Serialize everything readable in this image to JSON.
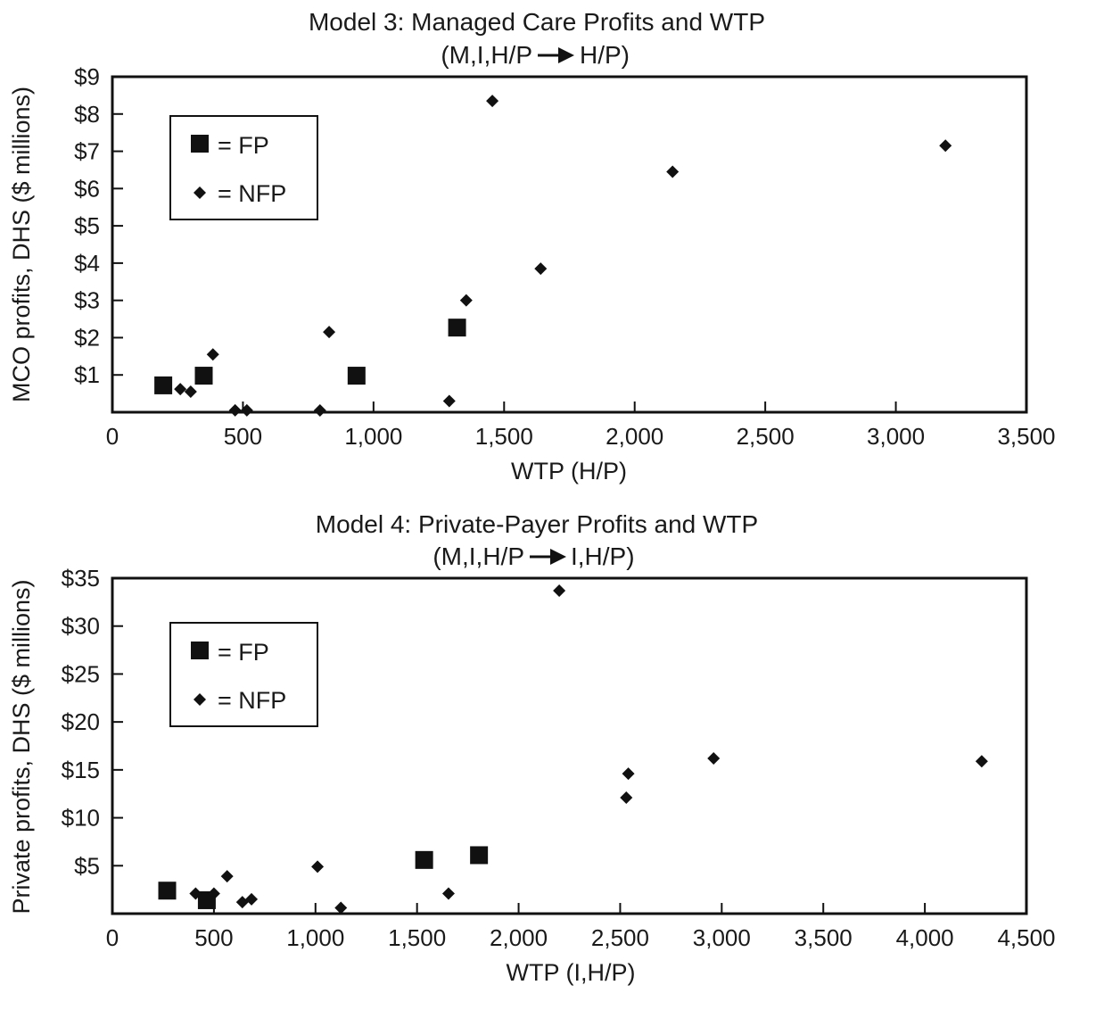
{
  "chart_data": [
    {
      "type": "scatter",
      "title": "Model 3: Managed Care Profits and WTP",
      "subtitle_left": "(M,I,H/P",
      "subtitle_right": "H/P)",
      "xlabel": "WTP (H/P)",
      "ylabel": "MCO profits, DHS ($ millions)",
      "xlim": [
        0,
        3500
      ],
      "ylim": [
        0,
        9
      ],
      "x_ticks": [
        0,
        500,
        1000,
        1500,
        2000,
        2500,
        3000,
        3500
      ],
      "x_tick_labels": [
        "0",
        "500",
        "1,000",
        "1,500",
        "2,000",
        "2,500",
        "3,000",
        "3,500"
      ],
      "y_ticks": [
        1,
        2,
        3,
        4,
        5,
        6,
        7,
        8,
        9
      ],
      "y_tick_labels": [
        "$1",
        "$2",
        "$3",
        "$4",
        "$5",
        "$6",
        "$7",
        "$8",
        "$9"
      ],
      "grid": false,
      "legend_position": "top-left",
      "series": [
        {
          "name": "= FP",
          "marker": "square",
          "points": [
            [
              195,
              0.72
            ],
            [
              350,
              0.98
            ],
            [
              935,
              0.98
            ],
            [
              1320,
              2.27
            ]
          ]
        },
        {
          "name": "= NFP",
          "marker": "diamond",
          "points": [
            [
              260,
              0.62
            ],
            [
              300,
              0.55
            ],
            [
              385,
              1.55
            ],
            [
              470,
              0.05
            ],
            [
              515,
              0.05
            ],
            [
              795,
              0.0
            ],
            [
              830,
              2.15
            ],
            [
              1290,
              0.3
            ],
            [
              1355,
              3.0
            ],
            [
              1455,
              8.35
            ],
            [
              1640,
              3.85
            ],
            [
              2145,
              6.45
            ],
            [
              3190,
              7.15
            ]
          ]
        }
      ]
    },
    {
      "type": "scatter",
      "title": "Model 4: Private-Payer Profits and WTP",
      "subtitle_left": "(M,I,H/P",
      "subtitle_right": "I,H/P)",
      "xlabel": "WTP (I,H/P)",
      "ylabel": "Private profits, DHS ($ millions)",
      "xlim": [
        0,
        4500
      ],
      "ylim": [
        0,
        35
      ],
      "x_ticks": [
        0,
        500,
        1000,
        1500,
        2000,
        2500,
        3000,
        3500,
        4000,
        4500
      ],
      "x_tick_labels": [
        "0",
        "500",
        "1,000",
        "1,500",
        "2,000",
        "2,500",
        "3,000",
        "3,500",
        "4,000",
        "4,500"
      ],
      "y_ticks": [
        5,
        10,
        15,
        20,
        25,
        30,
        35
      ],
      "y_tick_labels": [
        "$5",
        "$10",
        "$15",
        "$20",
        "$25",
        "$30",
        "$35"
      ],
      "grid": false,
      "legend_position": "top-left",
      "series": [
        {
          "name": "= FP",
          "marker": "square",
          "points": [
            [
              270,
              2.4
            ],
            [
              465,
              1.4
            ],
            [
              1535,
              5.6
            ],
            [
              1805,
              6.1
            ]
          ]
        },
        {
          "name": "= NFP",
          "marker": "diamond",
          "points": [
            [
              410,
              2.1
            ],
            [
              500,
              2.1
            ],
            [
              565,
              3.9
            ],
            [
              640,
              1.2
            ],
            [
              685,
              1.5
            ],
            [
              1010,
              4.9
            ],
            [
              1125,
              0.6
            ],
            [
              1655,
              2.1
            ],
            [
              2200,
              33.7
            ],
            [
              2530,
              12.1
            ],
            [
              2540,
              14.6
            ],
            [
              2960,
              16.2
            ],
            [
              4280,
              15.9
            ]
          ]
        }
      ]
    }
  ]
}
